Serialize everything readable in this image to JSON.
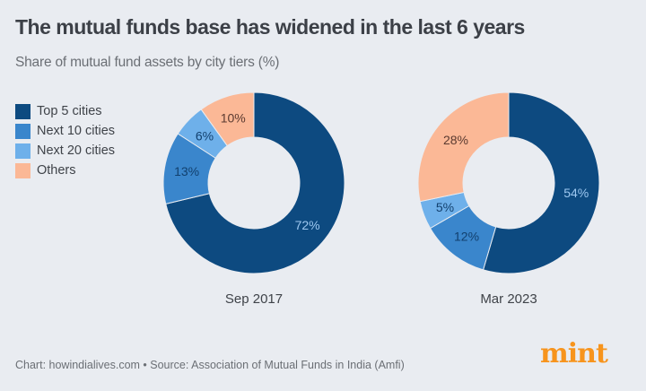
{
  "header": {
    "title": "The mutual funds base has widened in the last 6 years",
    "subtitle": "Share of mutual fund assets by city tiers (%)"
  },
  "legend": [
    {
      "label": "Top 5 cities",
      "color": "#0d4a80"
    },
    {
      "label": "Next 10 cities",
      "color": "#3a86cc"
    },
    {
      "label": "Next 20 cities",
      "color": "#6eb0ea"
    },
    {
      "label": "Others",
      "color": "#fbb896"
    }
  ],
  "footer": {
    "source": "Chart: howindialives.com • Source: Association of Mutual Funds in India (Amfi)",
    "logo": "mint",
    "logo_color": "#f7941d"
  },
  "chart_data": {
    "type": "pie",
    "title": "The mutual funds base has widened in the last 6 years",
    "subtitle": "Share of mutual fund assets by city tiers (%)",
    "categories": [
      "Top 5 cities",
      "Next 10 cities",
      "Next 20 cities",
      "Others"
    ],
    "donut": true,
    "legend_position": "left",
    "series": [
      {
        "name": "Sep 2017",
        "values": [
          72,
          13,
          6,
          10
        ]
      },
      {
        "name": "Mar 2023",
        "values": [
          54,
          12,
          5,
          28
        ]
      }
    ],
    "colors": [
      "#0d4a80",
      "#3a86cc",
      "#6eb0ea",
      "#fbb896"
    ],
    "label_colors": [
      "#9ec8f0",
      "#12406e",
      "#12406e",
      "#5a3a30"
    ]
  }
}
